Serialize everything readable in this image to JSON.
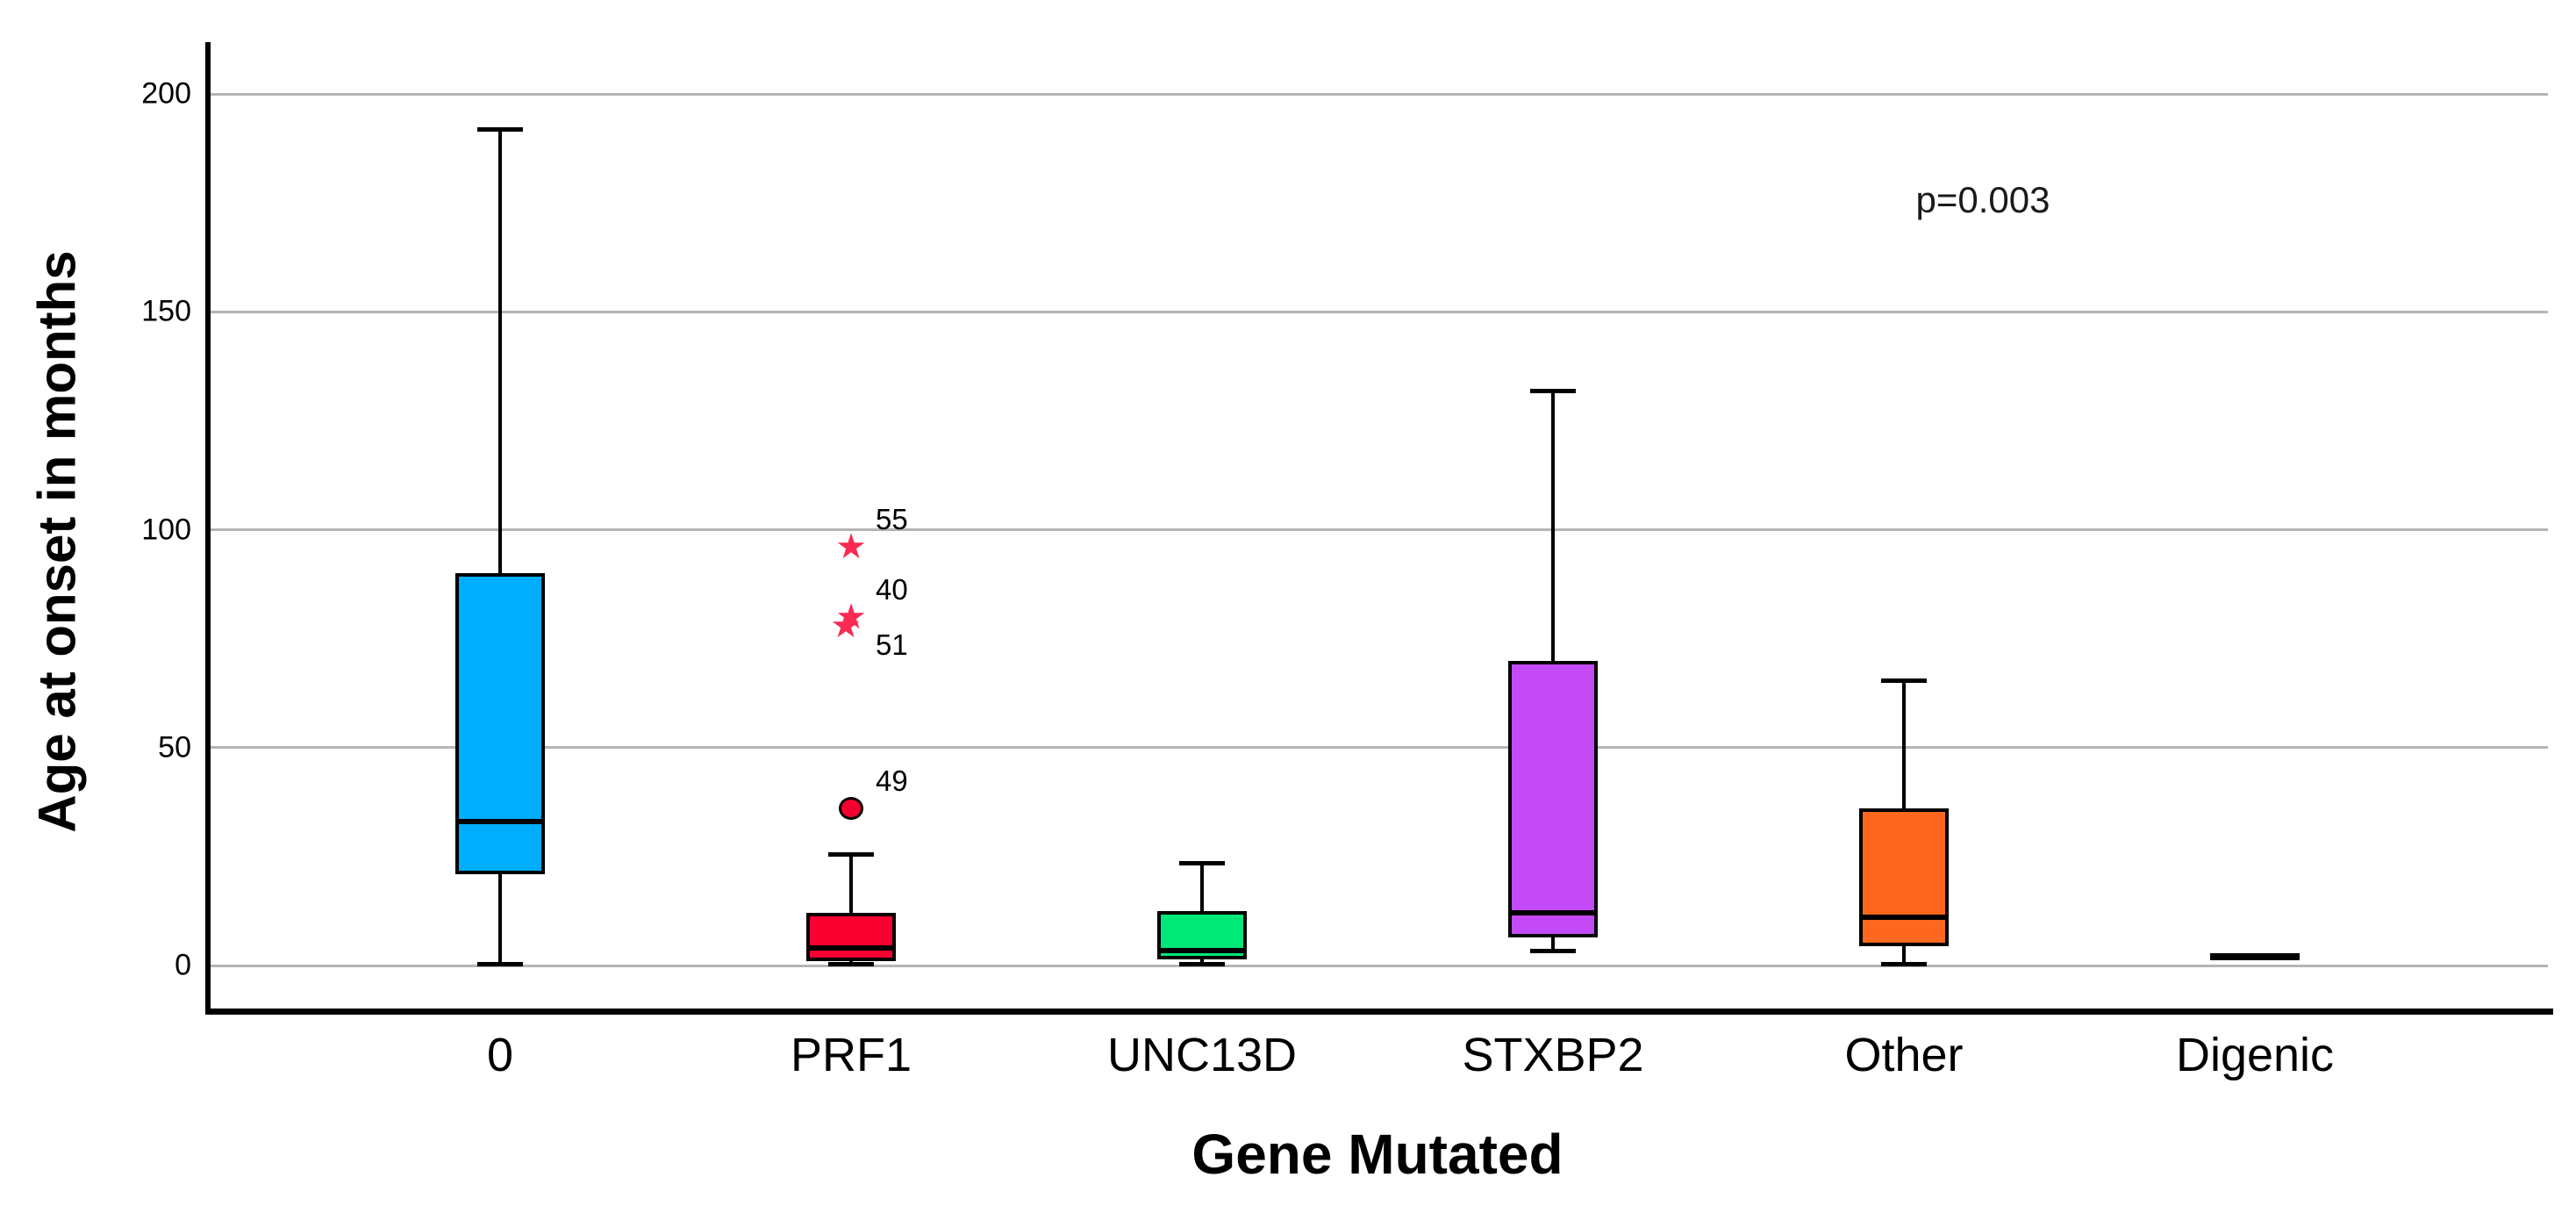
{
  "chart_data": {
    "type": "boxplot",
    "title": "",
    "xlabel": "Gene Mutated",
    "ylabel": "Age at onset in months",
    "ylim": [
      0,
      200
    ],
    "yticks": [
      0,
      50,
      100,
      150,
      200
    ],
    "grid": "horizontal-gray-lines",
    "legend": "none",
    "annotation": {
      "text": "p=0.003"
    },
    "categories": [
      "0",
      "PRF1",
      "UNC13D",
      "STXBP2",
      "Other",
      "Digenic"
    ],
    "colors": {
      "box_outline": "#000000",
      "gridline": "#b5b5b5",
      "extreme_outlier_star": "#fa2a52",
      "outlier_circle_fill": "#f40030"
    },
    "boxes": [
      {
        "category": "0",
        "min": 0.5,
        "q1": 21,
        "median": 33,
        "q3": 90,
        "max": 192,
        "color": "#00aeff"
      },
      {
        "category": "PRF1",
        "min": 0.5,
        "q1": 1,
        "median": 4,
        "q3": 12,
        "max": 25.5,
        "color": "#fa0032",
        "outliers": [
          {
            "case": "55",
            "value": 96,
            "marker": "star",
            "label_position": "above"
          },
          {
            "case": "40",
            "value": 80,
            "marker": "star",
            "label_position": "above"
          },
          {
            "case": "51",
            "value": 78,
            "marker": "star",
            "label_position": "below"
          },
          {
            "case": "49",
            "value": 36,
            "marker": "circle",
            "label_position": "above"
          }
        ]
      },
      {
        "category": "UNC13D",
        "min": 0.5,
        "q1": 1.5,
        "median": 3.5,
        "q3": 12.5,
        "max": 23.5,
        "color": "#00e878"
      },
      {
        "category": "STXBP2",
        "min": 3.5,
        "q1": 6.5,
        "median": 12,
        "q3": 70,
        "max": 132,
        "color": "#c44af8"
      },
      {
        "category": "Other",
        "min": 0.5,
        "q1": 4.5,
        "median": 11,
        "q3": 36,
        "max": 65.5,
        "color": "#ff671e"
      },
      {
        "category": "Digenic",
        "min": 2,
        "q1": 2,
        "median": 2,
        "q3": 2,
        "max": 2,
        "color": "#000000",
        "degenerate": true
      }
    ]
  }
}
